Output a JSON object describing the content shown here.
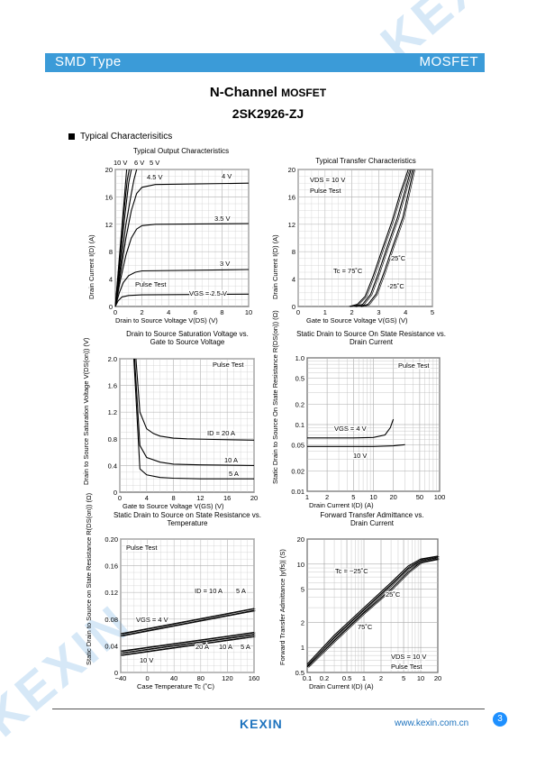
{
  "header": {
    "left": "SMD Type",
    "right": "MOSFET"
  },
  "title": {
    "line1_main": "N-Channel",
    "line1_small": "MOSFET",
    "line2": "2SK2926-ZJ"
  },
  "section": "Typical  Characterisitics",
  "watermark": "KEXIN",
  "footer": {
    "logo": "KEXIN",
    "site": "www.kexin.com.cn",
    "page": "3"
  },
  "colors": {
    "banner": "#3b9bd8",
    "footer_logo": "#1e73be",
    "page_badge": "#1e90ff"
  },
  "chart_data": [
    {
      "id": "c1",
      "type": "line",
      "title": "Typical Output Characteristics",
      "xlabel": "Drain to Source Voltage  V(DS)  (V)",
      "ylabel": "Drain Current  I(D)  (A)",
      "xlim": [
        0,
        10
      ],
      "ylim": [
        0,
        20
      ],
      "xticks": [
        "0",
        "2",
        "4",
        "6",
        "8",
        "10"
      ],
      "yticks": [
        "4",
        "8",
        "12",
        "16",
        "20"
      ],
      "annotations": [
        "Pulse Test"
      ],
      "series": [
        {
          "name": "VGS = 2.5 V",
          "x": [
            0,
            0.2,
            0.5,
            1,
            2,
            10
          ],
          "y": [
            0,
            0.8,
            1.4,
            1.6,
            1.7,
            1.8
          ]
        },
        {
          "name": "3 V",
          "x": [
            0,
            0.3,
            0.6,
            1,
            1.5,
            2,
            10
          ],
          "y": [
            0,
            2,
            3.5,
            4.5,
            5,
            5.2,
            5.4
          ]
        },
        {
          "name": "3.5 V",
          "x": [
            0,
            0.4,
            0.8,
            1.2,
            1.6,
            2,
            3,
            10
          ],
          "y": [
            0,
            4,
            7.5,
            10,
            11.3,
            11.8,
            12,
            12.1
          ]
        },
        {
          "name": "4 V",
          "x": [
            0,
            0.4,
            0.8,
            1.2,
            1.6,
            2,
            3,
            10
          ],
          "y": [
            0,
            5,
            10,
            14,
            16.5,
            17.4,
            17.8,
            18
          ]
        },
        {
          "name": "4.5 V",
          "x": [
            0,
            0.4,
            0.8,
            1.2,
            1.4,
            1.6
          ],
          "y": [
            0,
            6,
            12,
            16.5,
            18.5,
            20
          ]
        },
        {
          "name": "5 V",
          "x": [
            0,
            0.35,
            0.7,
            1,
            1.2
          ],
          "y": [
            0,
            6.5,
            13,
            18,
            20
          ]
        },
        {
          "name": "6 V",
          "x": [
            0,
            0.3,
            0.6,
            0.9,
            1.05
          ],
          "y": [
            0,
            6.5,
            13,
            18.5,
            20
          ]
        },
        {
          "name": "10 V",
          "x": [
            0,
            0.3,
            0.6,
            0.85
          ],
          "y": [
            0,
            7,
            14,
            20
          ]
        }
      ]
    },
    {
      "id": "c2",
      "type": "line",
      "title": "Typical Transfer Characteristics",
      "xlabel": "Gate to Source Voltage  V(GS)  (V)",
      "ylabel": "Drain Current  I(D)  (A)",
      "xlim": [
        0,
        5
      ],
      "ylim": [
        0,
        20
      ],
      "xticks": [
        "0",
        "1",
        "2",
        "3",
        "4",
        "5"
      ],
      "yticks": [
        "4",
        "8",
        "12",
        "16",
        "20"
      ],
      "annotations": [
        "VDS = 10 V",
        "Pulse Test"
      ],
      "series": [
        {
          "name": "Tc = 75˚C",
          "x": [
            1.9,
            2.2,
            2.5,
            2.8,
            3.1,
            3.5,
            3.8,
            4.1
          ],
          "y": [
            0,
            0.3,
            1.5,
            4.5,
            8,
            12.5,
            16.5,
            20
          ]
        },
        {
          "name": "25˚C",
          "x": [
            2.1,
            2.4,
            2.7,
            3,
            3.3,
            3.7,
            4.2
          ],
          "y": [
            0,
            0.3,
            1.8,
            5,
            8.5,
            13,
            20
          ]
        },
        {
          "name": "-25˚C",
          "x": [
            2.3,
            2.6,
            2.9,
            3.2,
            3.5,
            3.9,
            4.3
          ],
          "y": [
            0,
            0.3,
            1.8,
            5,
            8.5,
            13,
            20
          ]
        }
      ]
    },
    {
      "id": "c3",
      "type": "line",
      "title": "Drain to Source Saturation Voltage vs. Gate to Source Voltage",
      "xlabel": "Gate to Source Voltage  V(GS)  (V)",
      "ylabel": "Drain to Source Saturation Voltage  V(DS(on))  (V)",
      "xlim": [
        0,
        20
      ],
      "ylim": [
        0,
        2.0
      ],
      "xticks": [
        "0",
        "4",
        "8",
        "12",
        "16",
        "20"
      ],
      "yticks": [
        "0.4",
        "0.8",
        "1.2",
        "1.6",
        "2.0"
      ],
      "annotations": [
        "Pulse Test"
      ],
      "series": [
        {
          "name": "ID = 20 A",
          "x": [
            2.4,
            3,
            4,
            5,
            6,
            8,
            10,
            14,
            20
          ],
          "y": [
            2.0,
            1.2,
            0.95,
            0.88,
            0.84,
            0.81,
            0.8,
            0.79,
            0.78
          ]
        },
        {
          "name": "10 A",
          "x": [
            2.2,
            3,
            4,
            6,
            8,
            12,
            20
          ],
          "y": [
            2.0,
            0.7,
            0.52,
            0.45,
            0.42,
            0.41,
            0.4
          ]
        },
        {
          "name": "5 A",
          "x": [
            2.1,
            3,
            4,
            6,
            8,
            12,
            20
          ],
          "y": [
            2.0,
            0.35,
            0.26,
            0.22,
            0.21,
            0.2,
            0.2
          ]
        }
      ]
    },
    {
      "id": "c4",
      "type": "line",
      "title": "Static Drain to Source On State Resistance vs. Drain Current",
      "xlabel": "Drain Current  I(D)  (A)",
      "ylabel": "Static Drain to Source On State Resistance  R(DS(on))  (Ω)",
      "xlim": [
        1,
        100
      ],
      "ylim": [
        0.01,
        1.0
      ],
      "xscale": "log",
      "yscale": "log",
      "xticks": [
        "1",
        "2",
        "5",
        "10",
        "20",
        "50",
        "100"
      ],
      "yticks": [
        "0.01",
        "0.02",
        "0.05",
        "0.1",
        "0.2",
        "0.5",
        "1.0"
      ],
      "annotations": [
        "Pulse Test"
      ],
      "series": [
        {
          "name": "VGS = 4 V",
          "x": [
            1,
            5,
            10,
            15,
            18,
            20
          ],
          "y": [
            0.063,
            0.063,
            0.064,
            0.07,
            0.09,
            0.12
          ]
        },
        {
          "name": "10 V",
          "x": [
            1,
            10,
            20,
            30
          ],
          "y": [
            0.047,
            0.047,
            0.048,
            0.05
          ]
        }
      ]
    },
    {
      "id": "c5",
      "type": "line",
      "title": "Static Drain to Source on State Resistance vs. Temperature",
      "xlabel": "Case Temperature  Tc  (˚C)",
      "ylabel": "Static Drain to Source on State Resistance  R(DS(on))  (Ω)",
      "xlim": [
        -40,
        160
      ],
      "ylim": [
        0,
        0.2
      ],
      "xticks": [
        "−40",
        "0",
        "40",
        "80",
        "120",
        "160"
      ],
      "yticks": [
        "0",
        "0.04",
        "0.08",
        "0.12",
        "0.16",
        "0.20"
      ],
      "annotations": [
        "Pulse Test"
      ],
      "series": [
        {
          "name": "ID = 10 A",
          "x": [
            -40,
            160
          ],
          "y": [
            0.058,
            0.096
          ]
        },
        {
          "name": "5 A",
          "x": [
            -40,
            160
          ],
          "y": [
            0.055,
            0.093
          ]
        },
        {
          "name": "20 A",
          "x": [
            -40,
            160
          ],
          "y": [
            0.032,
            0.06
          ]
        },
        {
          "name": "10 A",
          "x": [
            -40,
            160
          ],
          "y": [
            0.029,
            0.057
          ]
        },
        {
          "name": "5 A",
          "x": [
            -40,
            160
          ],
          "y": [
            0.026,
            0.054
          ]
        }
      ],
      "labels": [
        "VGS = 4 V",
        "10 V"
      ]
    },
    {
      "id": "c6",
      "type": "line",
      "title": "Forward Transfer Admittance vs. Drain Current",
      "xlabel": "Drain Current  I(D)  (A)",
      "ylabel": "Forward Transfer Admittance  |y(fs)|  (S)",
      "xlim": [
        0.1,
        20
      ],
      "ylim": [
        0.5,
        20
      ],
      "xscale": "log",
      "yscale": "log",
      "xticks": [
        "0.1",
        "0.2",
        "0.5",
        "1",
        "2",
        "5",
        "10",
        "20"
      ],
      "yticks": [
        "0.5",
        "1",
        "2",
        "5",
        "10",
        "20"
      ],
      "annotations": [
        "VDS = 10 V",
        "Pulse Test"
      ],
      "series": [
        {
          "name": "Tc = −25˚C",
          "x": [
            0.1,
            0.3,
            1,
            3,
            6,
            10,
            20
          ],
          "y": [
            0.58,
            1.2,
            2.6,
            5,
            8,
            10.5,
            11.5
          ]
        },
        {
          "name": "25˚C",
          "x": [
            0.1,
            0.3,
            1,
            3,
            6,
            10,
            20
          ],
          "y": [
            0.6,
            1.3,
            2.8,
            5.6,
            8.8,
            11,
            12
          ]
        },
        {
          "name": "75˚C",
          "x": [
            0.1,
            0.3,
            1,
            3,
            6,
            10,
            20
          ],
          "y": [
            0.63,
            1.4,
            3,
            6,
            9.5,
            11.5,
            12.5
          ]
        }
      ]
    }
  ]
}
